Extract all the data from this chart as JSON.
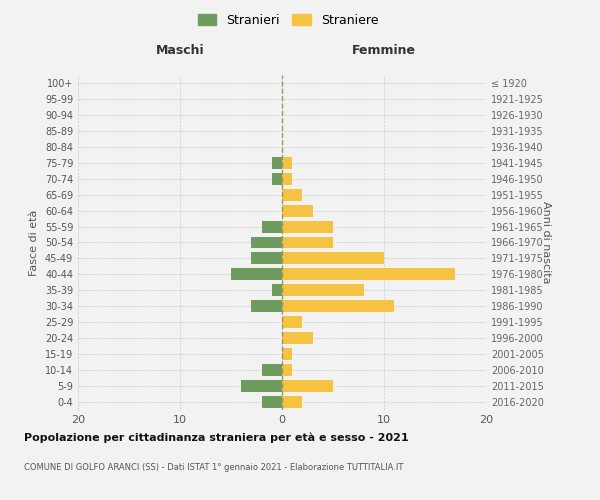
{
  "age_groups": [
    "0-4",
    "5-9",
    "10-14",
    "15-19",
    "20-24",
    "25-29",
    "30-34",
    "35-39",
    "40-44",
    "45-49",
    "50-54",
    "55-59",
    "60-64",
    "65-69",
    "70-74",
    "75-79",
    "80-84",
    "85-89",
    "90-94",
    "95-99",
    "100+"
  ],
  "birth_years": [
    "2016-2020",
    "2011-2015",
    "2006-2010",
    "2001-2005",
    "1996-2000",
    "1991-1995",
    "1986-1990",
    "1981-1985",
    "1976-1980",
    "1971-1975",
    "1966-1970",
    "1961-1965",
    "1956-1960",
    "1951-1955",
    "1946-1950",
    "1941-1945",
    "1936-1940",
    "1931-1935",
    "1926-1930",
    "1921-1925",
    "≤ 1920"
  ],
  "males": [
    2,
    4,
    2,
    0,
    0,
    0,
    3,
    1,
    5,
    3,
    3,
    2,
    0,
    0,
    1,
    1,
    0,
    0,
    0,
    0,
    0
  ],
  "females": [
    2,
    5,
    1,
    1,
    3,
    2,
    11,
    8,
    17,
    10,
    5,
    5,
    3,
    2,
    1,
    1,
    0,
    0,
    0,
    0,
    0
  ],
  "male_color": "#6e9c5e",
  "female_color": "#f5c242",
  "background_color": "#f2f2f2",
  "grid_color": "#cccccc",
  "title": "Popolazione per cittadinanza straniera per età e sesso - 2021",
  "subtitle": "COMUNE DI GOLFO ARANCI (SS) - Dati ISTAT 1° gennaio 2021 - Elaborazione TUTTITALIA.IT",
  "xlabel_left": "Maschi",
  "xlabel_right": "Femmine",
  "ylabel_left": "Fasce di età",
  "ylabel_right": "Anni di nascita",
  "legend_male": "Stranieri",
  "legend_female": "Straniere",
  "xlim": 20,
  "center_line_color": "#999966"
}
